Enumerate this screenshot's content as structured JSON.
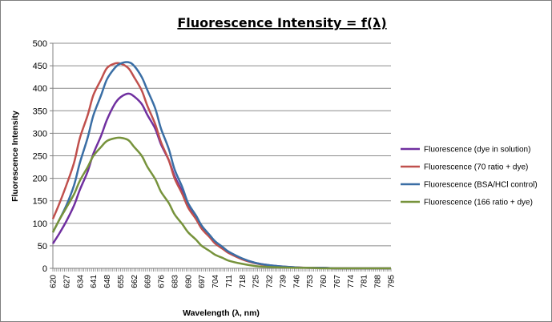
{
  "chart_data": {
    "type": "line",
    "title": "Fluorescence Intensity = f(λ)",
    "xlabel": "Wavelength (λ, nm)",
    "ylabel": "Fluorescence Intensity",
    "ylim": [
      0,
      500
    ],
    "y_ticks": [
      "0",
      "50",
      "100",
      "150",
      "200",
      "250",
      "300",
      "350",
      "400",
      "450",
      "500"
    ],
    "x_tick_labels": [
      "620",
      "627",
      "634",
      "641",
      "648",
      "655",
      "662",
      "669",
      "676",
      "683",
      "690",
      "697",
      "704",
      "711",
      "718",
      "725",
      "732",
      "739",
      "746",
      "753",
      "760",
      "767",
      "774",
      "781",
      "788",
      "795"
    ],
    "grid": "horizontal",
    "legend_position": "right",
    "series": [
      {
        "name": "Fluorescence (dye in solution)",
        "color": "#7030a0",
        "x": [
          620,
          623,
          627,
          631,
          634,
          638,
          641,
          645,
          648,
          652,
          655,
          659,
          662,
          666,
          669,
          673,
          676,
          680,
          683,
          687,
          690,
          694,
          697,
          701,
          704,
          708,
          711,
          718,
          725,
          732,
          739,
          746,
          753,
          760,
          767,
          774,
          781,
          788,
          795
        ],
        "y": [
          55,
          75,
          105,
          140,
          175,
          215,
          255,
          295,
          330,
          365,
          380,
          388,
          382,
          365,
          340,
          310,
          275,
          240,
          205,
          170,
          140,
          115,
          92,
          73,
          58,
          46,
          36,
          21,
          12,
          7,
          4,
          2,
          1,
          1,
          0,
          0,
          0,
          0,
          0
        ]
      },
      {
        "name": "Fluorescence (70 ratio + dye)",
        "color": "#c0504d",
        "x": [
          620,
          623,
          627,
          631,
          634,
          638,
          641,
          645,
          648,
          652,
          655,
          659,
          662,
          666,
          669,
          673,
          676,
          680,
          683,
          687,
          690,
          694,
          697,
          701,
          704,
          708,
          711,
          718,
          725,
          732,
          739,
          746,
          753,
          760,
          767,
          774,
          781,
          788,
          795
        ],
        "y": [
          110,
          140,
          185,
          235,
          290,
          340,
          385,
          420,
          445,
          455,
          455,
          445,
          425,
          395,
          360,
          320,
          280,
          240,
          200,
          165,
          135,
          110,
          88,
          70,
          55,
          43,
          34,
          20,
          11,
          6,
          3,
          2,
          1,
          1,
          0,
          0,
          0,
          0,
          0
        ]
      },
      {
        "name": "Fluorescence (BSA/HCl control)",
        "color": "#3a6ea5",
        "x": [
          620,
          623,
          627,
          631,
          634,
          638,
          641,
          645,
          648,
          652,
          655,
          659,
          662,
          666,
          669,
          673,
          676,
          680,
          683,
          687,
          690,
          694,
          697,
          701,
          704,
          708,
          711,
          718,
          725,
          732,
          739,
          746,
          753,
          760,
          767,
          774,
          781,
          788,
          795
        ],
        "y": [
          80,
          105,
          140,
          185,
          235,
          290,
          340,
          385,
          420,
          445,
          455,
          458,
          450,
          425,
          395,
          355,
          310,
          265,
          220,
          180,
          145,
          118,
          95,
          75,
          60,
          47,
          37,
          22,
          12,
          7,
          4,
          2,
          1,
          1,
          0,
          0,
          0,
          0,
          0
        ]
      },
      {
        "name": "Fluorescence (166 ratio + dye)",
        "color": "#77933c",
        "x": [
          620,
          623,
          627,
          631,
          634,
          638,
          641,
          645,
          648,
          652,
          655,
          659,
          662,
          666,
          669,
          673,
          676,
          680,
          683,
          687,
          690,
          694,
          697,
          701,
          704,
          708,
          711,
          718,
          725,
          732,
          739,
          746,
          753,
          760,
          767,
          774,
          781,
          788,
          795
        ],
        "y": [
          80,
          105,
          135,
          165,
          195,
          225,
          250,
          270,
          283,
          289,
          290,
          285,
          270,
          250,
          225,
          198,
          170,
          145,
          120,
          98,
          80,
          64,
          50,
          39,
          30,
          23,
          17,
          10,
          5,
          3,
          2,
          1,
          1,
          0,
          0,
          0,
          0,
          0,
          0
        ]
      }
    ]
  }
}
